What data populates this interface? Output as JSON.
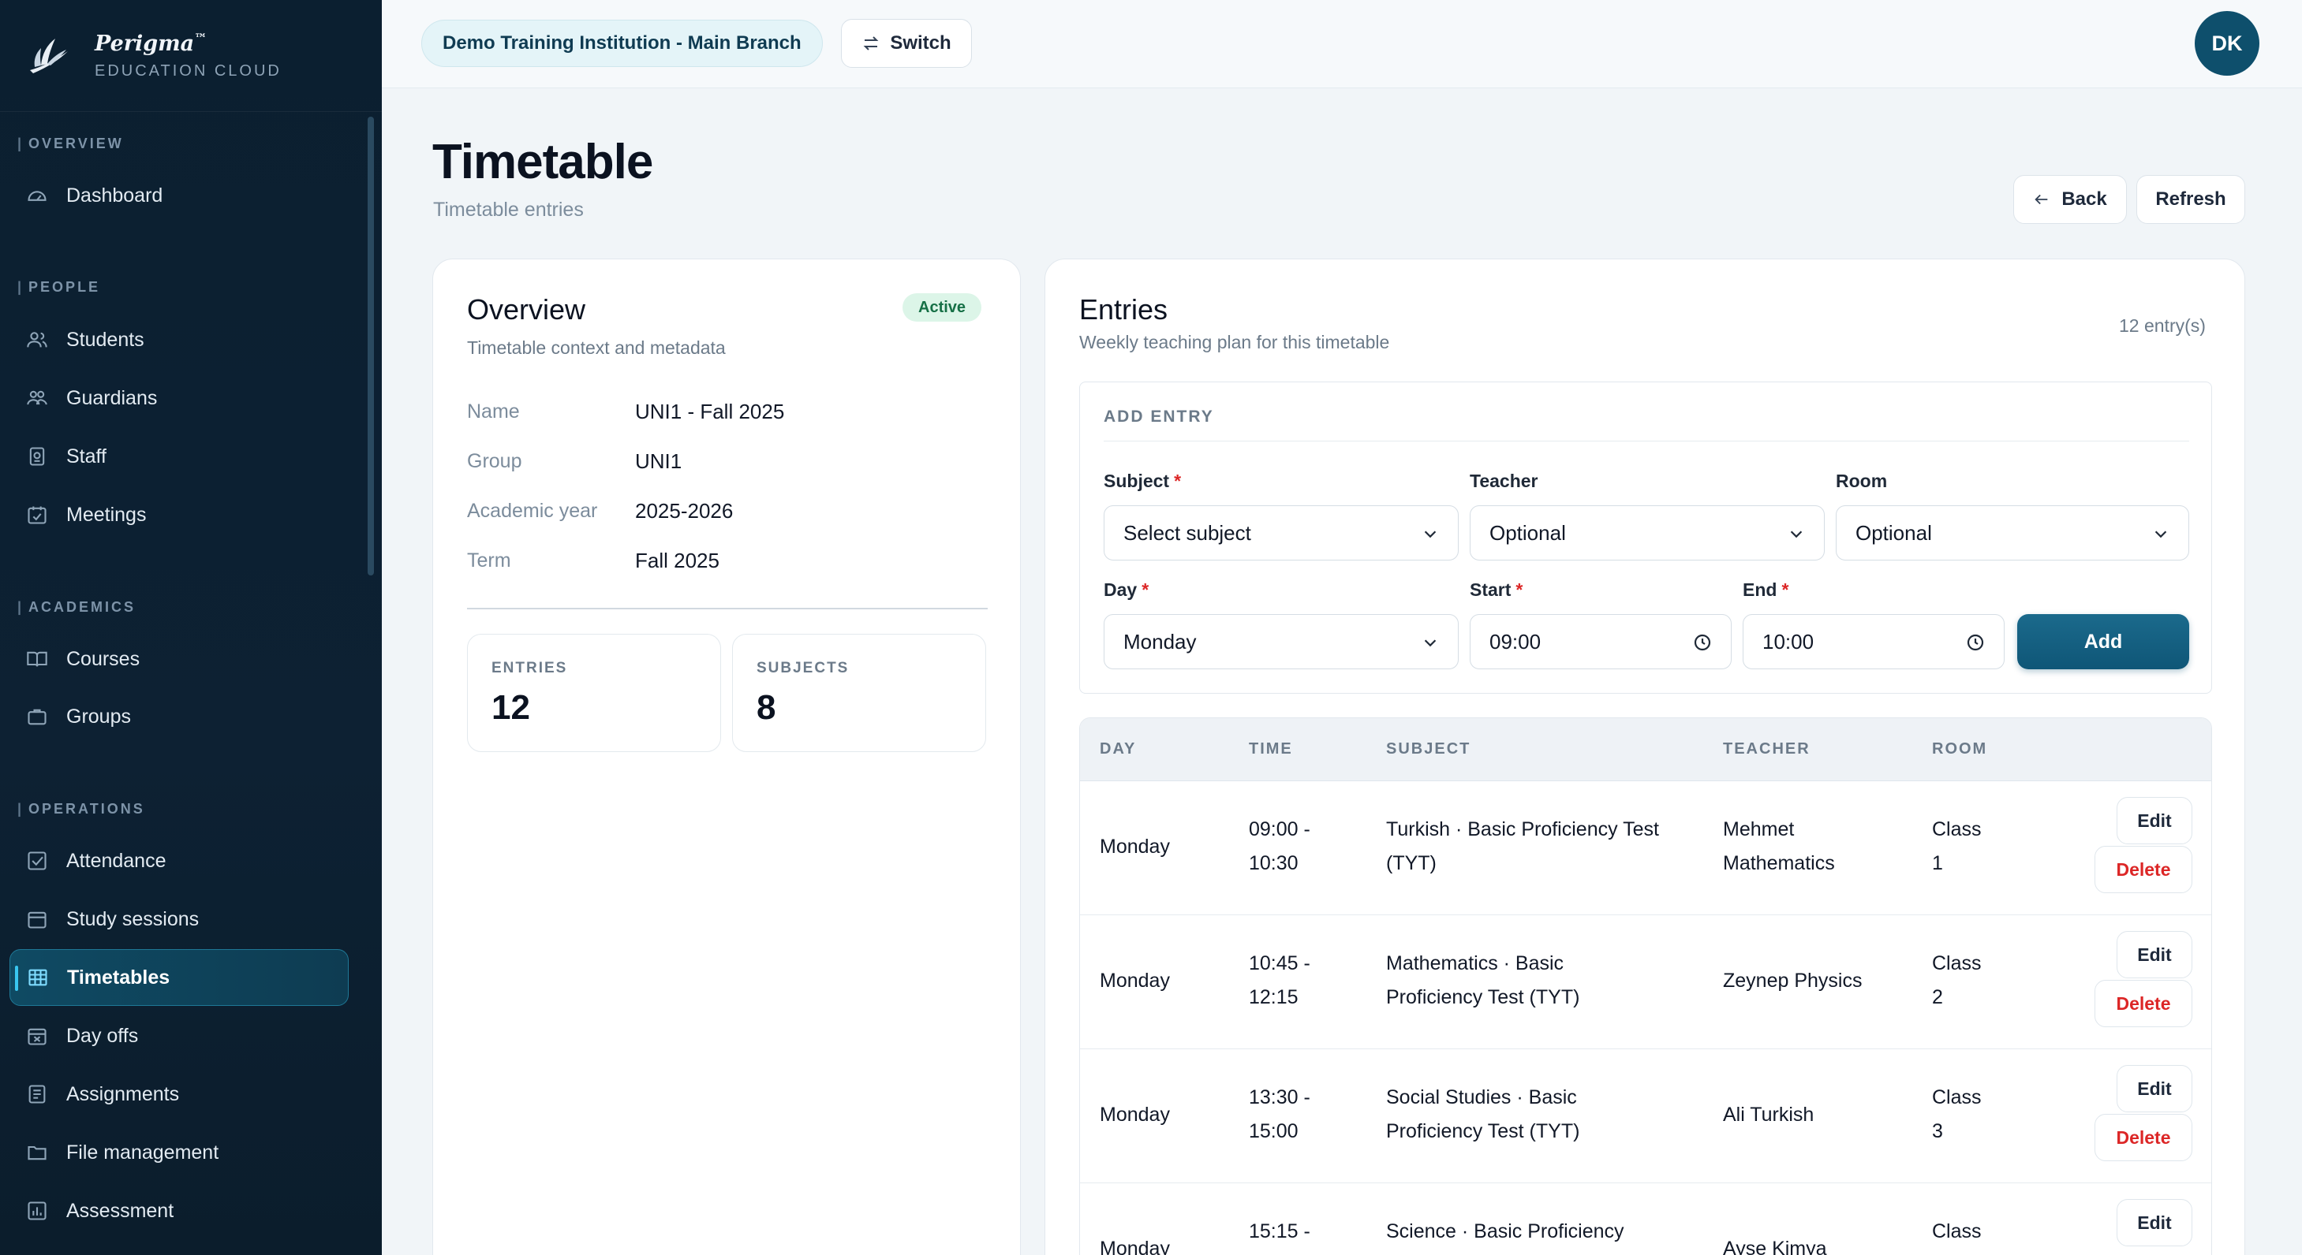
{
  "brand": {
    "name": "Perigma",
    "trademark": "™",
    "subtitle": "EDUCATION CLOUD"
  },
  "sidebar": {
    "sections": [
      {
        "label": "OVERVIEW",
        "items": [
          {
            "label": "Dashboard",
            "icon": "gauge-icon"
          }
        ]
      },
      {
        "label": "PEOPLE",
        "items": [
          {
            "label": "Students",
            "icon": "users-icon"
          },
          {
            "label": "Guardians",
            "icon": "guardians-icon"
          },
          {
            "label": "Staff",
            "icon": "badge-icon"
          },
          {
            "label": "Meetings",
            "icon": "calendar-check-icon"
          }
        ]
      },
      {
        "label": "ACADEMICS",
        "items": [
          {
            "label": "Courses",
            "icon": "book-icon"
          },
          {
            "label": "Groups",
            "icon": "briefcase-icon"
          }
        ]
      },
      {
        "label": "OPERATIONS",
        "items": [
          {
            "label": "Attendance",
            "icon": "checkbox-icon"
          },
          {
            "label": "Study sessions",
            "icon": "calendar-dots-icon"
          },
          {
            "label": "Timetables",
            "icon": "grid-table-icon",
            "active": true
          },
          {
            "label": "Day offs",
            "icon": "calendar-x-icon"
          },
          {
            "label": "Assignments",
            "icon": "list-icon"
          },
          {
            "label": "File management",
            "icon": "folder-icon"
          },
          {
            "label": "Assessment",
            "icon": "chart-icon"
          }
        ]
      }
    ]
  },
  "topbar": {
    "branch": "Demo Training Institution - Main Branch",
    "switch_label": "Switch",
    "avatar_initials": "DK"
  },
  "page": {
    "title": "Timetable",
    "subtitle": "Timetable entries",
    "back_label": "Back",
    "refresh_label": "Refresh"
  },
  "overview": {
    "title": "Overview",
    "subtitle": "Timetable context and metadata",
    "status": "Active",
    "fields": [
      {
        "label": "Name",
        "value": "UNI1 - Fall 2025"
      },
      {
        "label": "Group",
        "value": "UNI1"
      },
      {
        "label": "Academic year",
        "value": "2025-2026"
      },
      {
        "label": "Term",
        "value": "Fall 2025"
      }
    ],
    "stats": [
      {
        "label": "ENTRIES",
        "value": "12"
      },
      {
        "label": "SUBJECTS",
        "value": "8"
      }
    ]
  },
  "entries": {
    "title": "Entries",
    "subtitle": "Weekly teaching plan for this timetable",
    "count": "12 entry(s)",
    "add": {
      "heading": "ADD ENTRY",
      "subject_label": "Subject",
      "subject_value": "Select subject",
      "teacher_label": "Teacher",
      "teacher_value": "Optional",
      "room_label": "Room",
      "room_value": "Optional",
      "day_label": "Day",
      "day_value": "Monday",
      "start_label": "Start",
      "start_value": "09:00",
      "end_label": "End",
      "end_value": "10:00",
      "required_mark": "*",
      "add_label": "Add"
    },
    "columns": [
      "DAY",
      "TIME",
      "SUBJECT",
      "TEACHER",
      "ROOM"
    ],
    "edit_label": "Edit",
    "delete_label": "Delete",
    "rows": [
      {
        "day": "Monday",
        "time": [
          "09:00 -",
          "10:30"
        ],
        "subject": [
          "Turkish · Basic Proficiency Test",
          "(TYT)"
        ],
        "teacher": [
          "Mehmet",
          "Mathematics"
        ],
        "room": [
          "Class",
          "1"
        ]
      },
      {
        "day": "Monday",
        "time": [
          "10:45 -",
          "12:15"
        ],
        "subject": [
          "Mathematics · Basic",
          "Proficiency Test (TYT)"
        ],
        "teacher": [
          "Zeynep Physics"
        ],
        "room": [
          "Class",
          "2"
        ]
      },
      {
        "day": "Monday",
        "time": [
          "13:30 -",
          "15:00"
        ],
        "subject": [
          "Social Studies · Basic",
          "Proficiency Test (TYT)"
        ],
        "teacher": [
          "Ali Turkish"
        ],
        "room": [
          "Class",
          "3"
        ]
      },
      {
        "day": "Monday",
        "time": [
          "15:15 -",
          ""
        ],
        "subject": [
          "Science · Basic Proficiency",
          ""
        ],
        "teacher": [
          "Ayse Kimya"
        ],
        "room": [
          "Class",
          ""
        ]
      }
    ]
  },
  "colors": {
    "accent": "#0f5677",
    "sidebar_bg": "#0b1f30",
    "active_badge": "#167046",
    "danger": "#dc2626"
  }
}
